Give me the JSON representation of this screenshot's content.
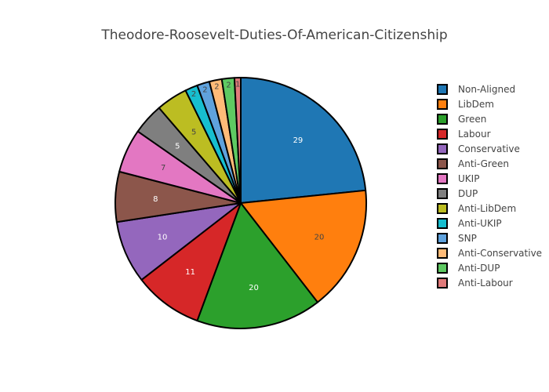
{
  "chart_data": {
    "type": "pie",
    "title": "Theodore-Roosevelt-Duties-Of-American-Citizenship",
    "legend_position": "right",
    "slices": [
      {
        "name": "Non-Aligned",
        "value": 29,
        "color": "#1f77b4",
        "label_color": "#ffffff"
      },
      {
        "name": "LibDem",
        "value": 20,
        "color": "#ff7f0e",
        "label_color": "#444444"
      },
      {
        "name": "Green",
        "value": 20,
        "color": "#2ca02c",
        "label_color": "#ffffff"
      },
      {
        "name": "Labour",
        "value": 11,
        "color": "#d62728",
        "label_color": "#ffffff"
      },
      {
        "name": "Conservative",
        "value": 10,
        "color": "#9467bd",
        "label_color": "#ffffff"
      },
      {
        "name": "Anti-Green",
        "value": 8,
        "color": "#8c564b",
        "label_color": "#ffffff"
      },
      {
        "name": "UKIP",
        "value": 7,
        "color": "#e377c2",
        "label_color": "#444444"
      },
      {
        "name": "DUP",
        "value": 5,
        "color": "#7f7f7f",
        "label_color": "#ffffff"
      },
      {
        "name": "Anti-LibDem",
        "value": 5,
        "color": "#bcbd22",
        "label_color": "#444444"
      },
      {
        "name": "Anti-UKIP",
        "value": 2,
        "color": "#17becf",
        "label_color": "#444444"
      },
      {
        "name": "SNP",
        "value": 2,
        "color": "#5fa2dd",
        "label_color": "#444444"
      },
      {
        "name": "Anti-Conservative",
        "value": 2,
        "color": "#ffbb78",
        "label_color": "#444444"
      },
      {
        "name": "Anti-DUP",
        "value": 2,
        "color": "#5ec962",
        "label_color": "#444444"
      },
      {
        "name": "Anti-Labour",
        "value": 1,
        "color": "#e07a7a",
        "label_color": "#444444"
      }
    ]
  }
}
